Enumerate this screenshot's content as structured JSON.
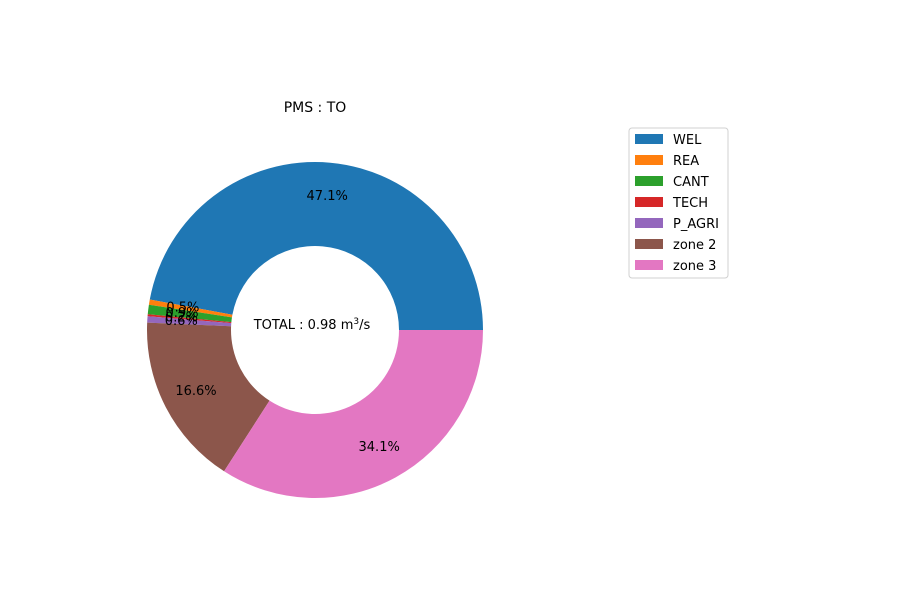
{
  "chart_data": {
    "type": "pie",
    "donut": true,
    "title": "PMS : TO",
    "center_label": {
      "prefix": "TOTAL : 0.98 m",
      "superscript": "3",
      "suffix": "/s"
    },
    "legend_placement": "top-right",
    "slices": [
      {
        "name": "WEL",
        "value": 47.1,
        "label": "47.1%",
        "color": "#1f77b4"
      },
      {
        "name": "REA",
        "value": 0.5,
        "label": "0.5%",
        "color": "#ff7f0e"
      },
      {
        "name": "CANT",
        "value": 0.9,
        "label": "0.9%",
        "color": "#2ca02c"
      },
      {
        "name": "TECH",
        "value": 0.2,
        "label": "0.2%",
        "color": "#d62728"
      },
      {
        "name": "P_AGRI",
        "value": 0.6,
        "label": "0.6%",
        "color": "#9467bd"
      },
      {
        "name": "zone 2",
        "value": 16.6,
        "label": "16.6%",
        "color": "#8c564b"
      },
      {
        "name": "zone 3",
        "value": 34.1,
        "label": "34.1%",
        "color": "#e377c2"
      }
    ]
  }
}
